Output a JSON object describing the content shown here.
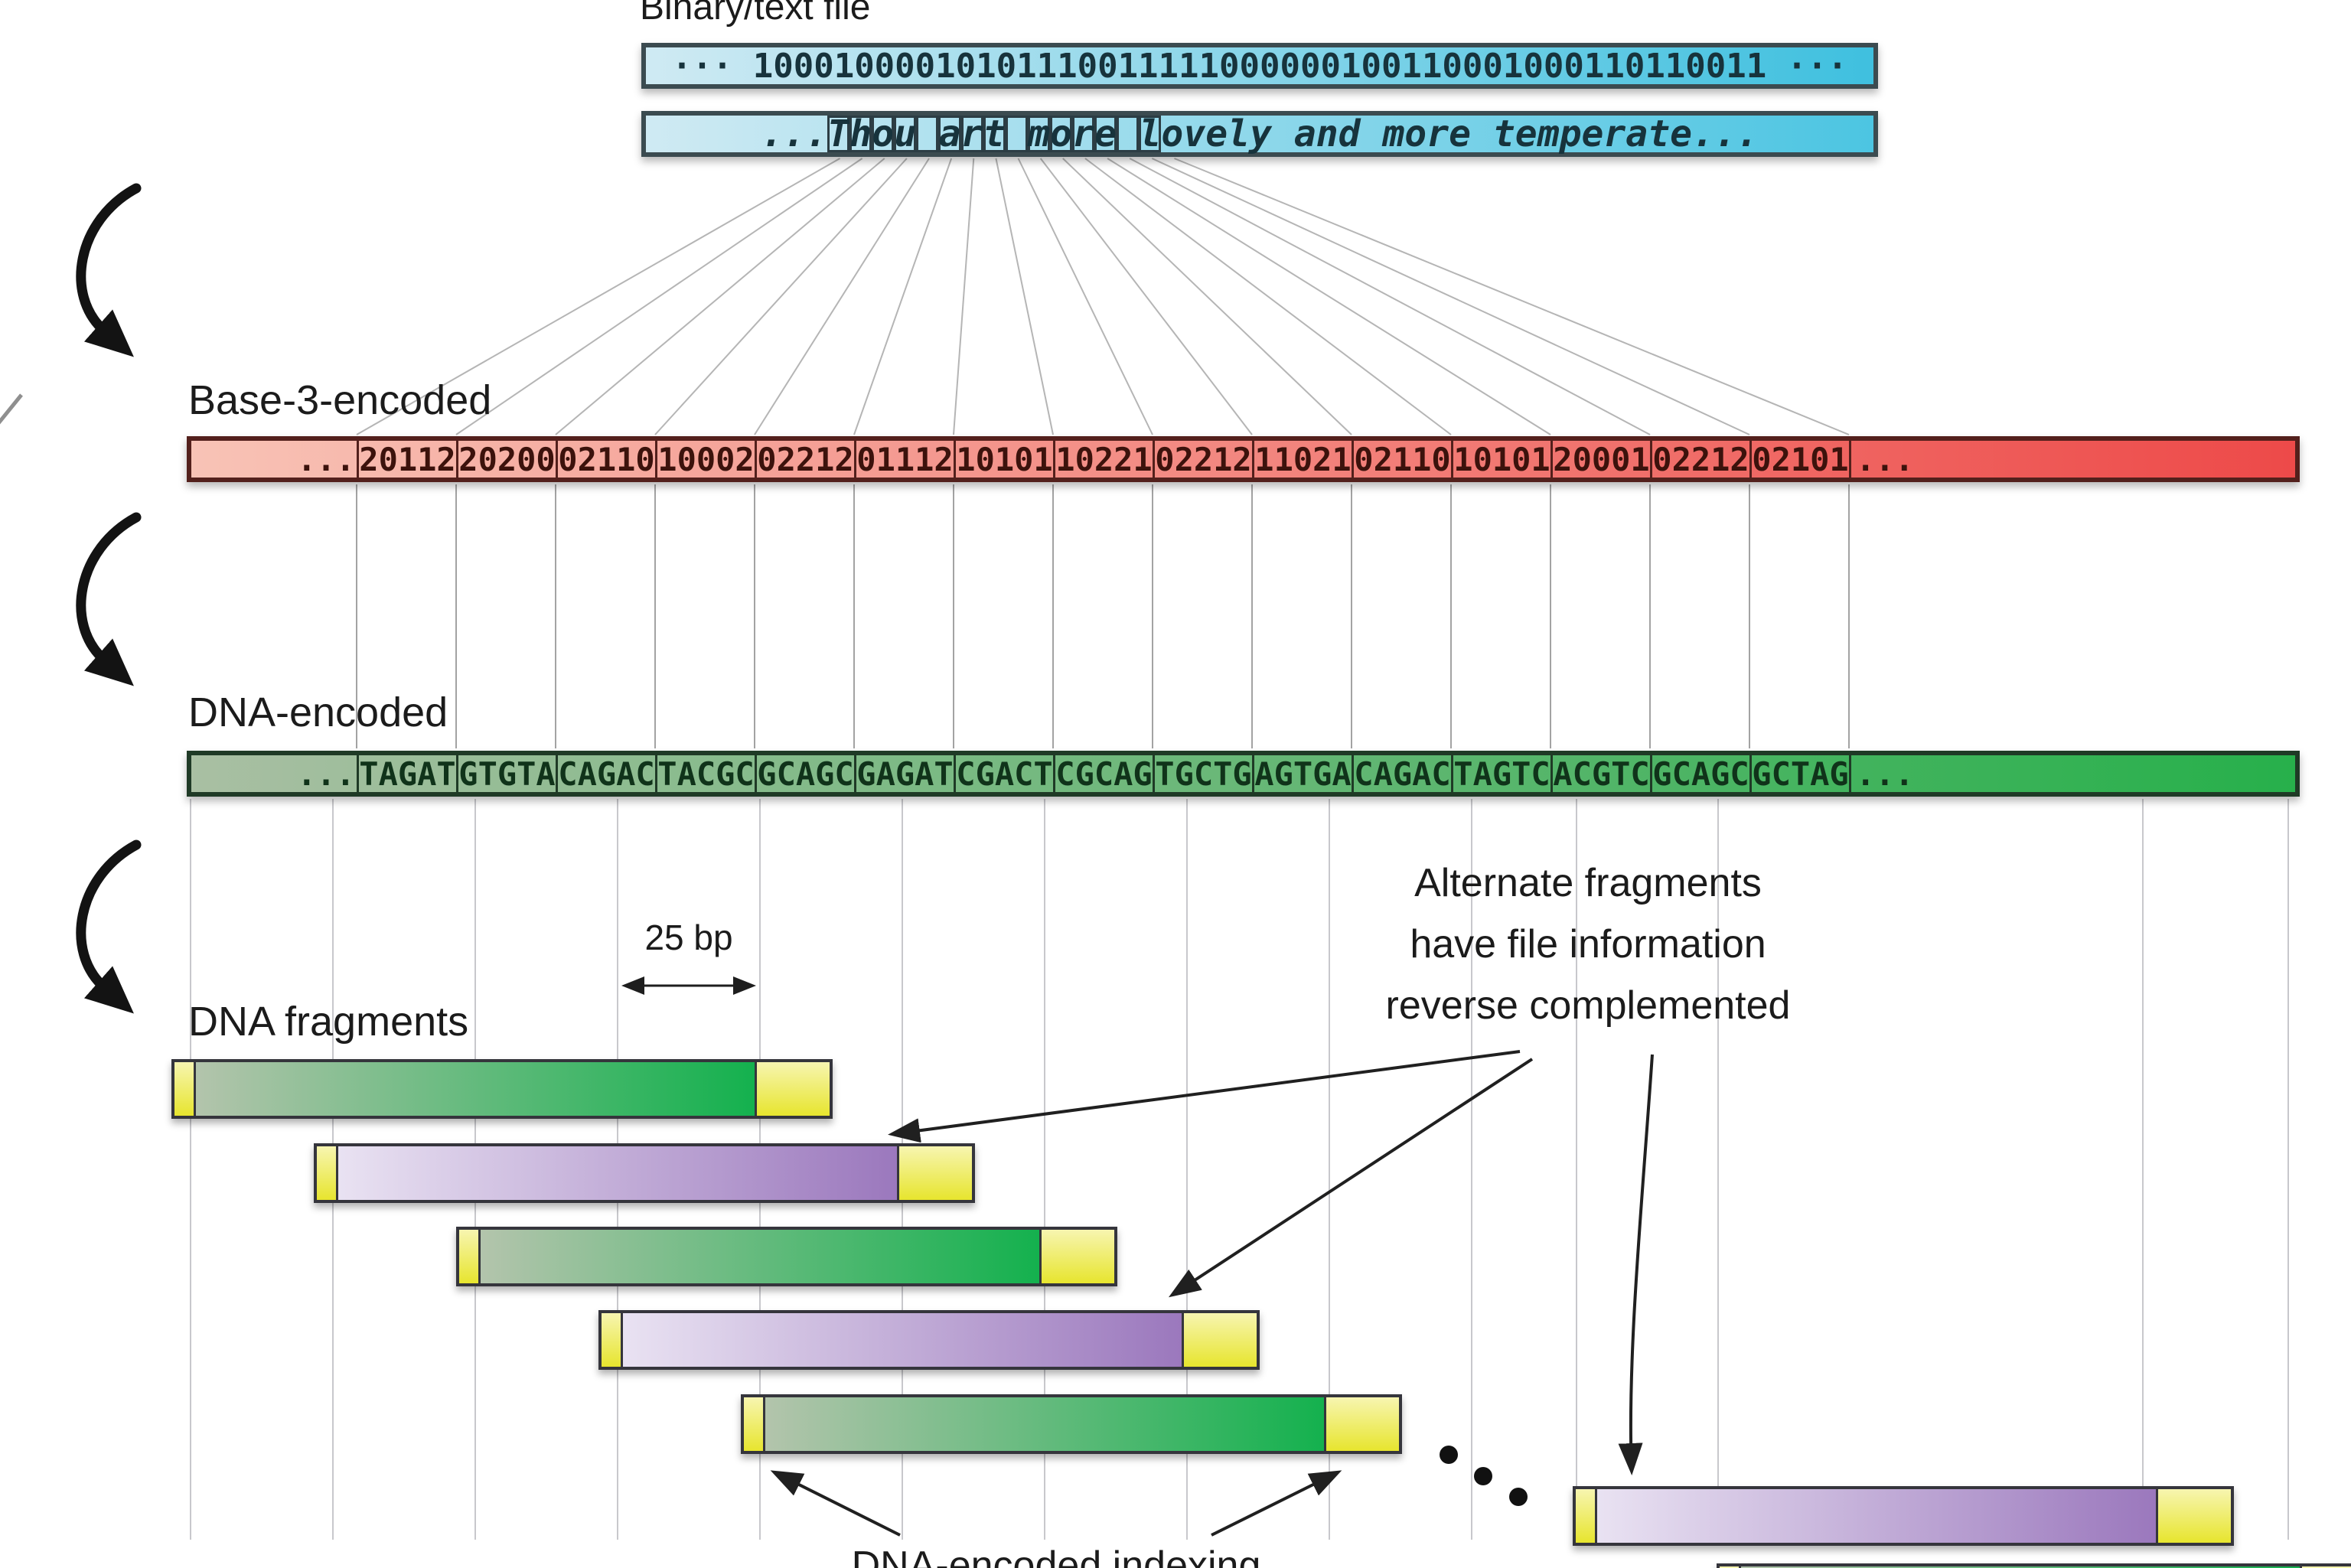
{
  "top": {
    "label": "Binary/text file"
  },
  "binary_bar": {
    "text": "··· 10001000010101110011111000000100110001000110110011 ···"
  },
  "text_bar": {
    "leading": "...",
    "boxed_chars": "Thou art more l",
    "rest": "ovely and more temperate..."
  },
  "base3_bar": {
    "label": "Base-3-encoded",
    "leading_cell": "...",
    "cells": [
      "20112",
      "20200",
      "02110",
      "10002",
      "02212",
      "01112",
      "10101",
      "10221",
      "02212",
      "11021",
      "02110",
      "10101",
      "20001",
      "02212",
      "02101"
    ],
    "trailing_cell": "..."
  },
  "dna_bar": {
    "label": "DNA-encoded",
    "leading_cell": "...",
    "cells": [
      "TAGAT",
      "GTGTA",
      "CAGAC",
      "TACGC",
      "GCAGC",
      "GAGAT",
      "CGACT",
      "CGCAG",
      "TGCTG",
      "AGTGA",
      "CAGAC",
      "TAGTC",
      "ACGTC",
      "GCAGC",
      "GCTAG"
    ],
    "trailing_cell": "..."
  },
  "fragments_section": {
    "label": "DNA fragments",
    "scale_label": "25 bp",
    "fragments": [
      {
        "style": "green"
      },
      {
        "style": "purple"
      },
      {
        "style": "green"
      },
      {
        "style": "purple"
      },
      {
        "style": "green"
      },
      {
        "style": "purple"
      },
      {
        "style": "green"
      }
    ]
  },
  "annotations": {
    "alternate_lines": [
      "Alternate fragments",
      "have file information",
      "reverse complemented"
    ],
    "indexing_label": "DNA-encoded indexing"
  },
  "colors": {
    "bar_border_blue": "#3b4b50",
    "binary_left": "#cfeaf3",
    "binary_right": "#3fc0df",
    "text_right": "#4cc5e2",
    "blue_text": "#17333c",
    "box_border": "#2c3d44",
    "red_border": "#53201c",
    "red_left": "#f8c3b6",
    "red_right": "#ed4a49",
    "red_text": "#3c120c",
    "green_border": "#1f3a26",
    "green_left": "#a9bfa3",
    "green_right": "#27b04b",
    "green_text": "#10331a",
    "frag_border": "#35353c",
    "frag_green_left": "#b3c4ac",
    "frag_green_right": "#14b14e",
    "frag_purple_left": "#e9e2f2",
    "frag_purple_right": "#9b78bd",
    "cap_top": "#f7f5b0",
    "cap_bottom": "#e7e52e",
    "grid_line": "#c8c8cc",
    "fan_line": "#b5b5b5",
    "divider_line": "#a3a3a3"
  }
}
